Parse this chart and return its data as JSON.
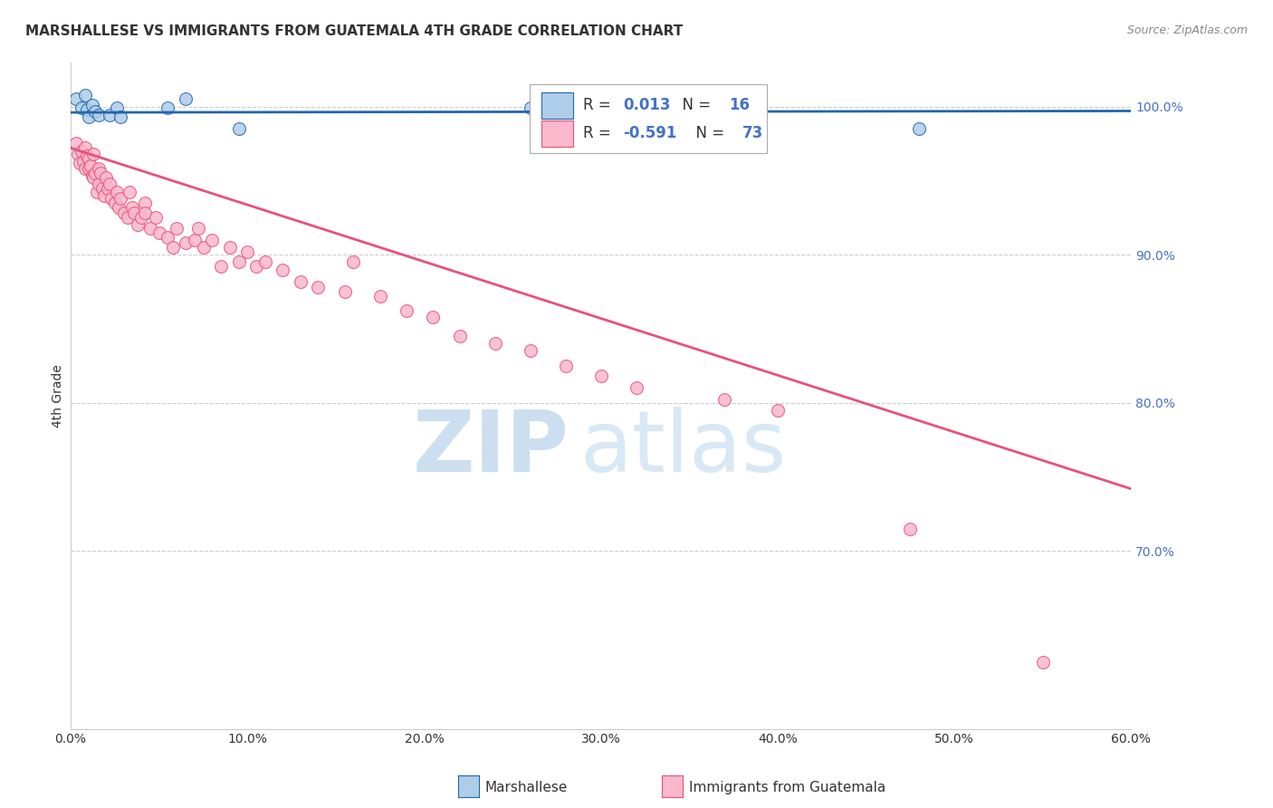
{
  "title": "MARSHALLESE VS IMMIGRANTS FROM GUATEMALA 4TH GRADE CORRELATION CHART",
  "source": "Source: ZipAtlas.com",
  "xlabel_marshallese": "Marshallese",
  "xlabel_guatemala": "Immigrants from Guatemala",
  "ylabel": "4th Grade",
  "xlim": [
    0.0,
    0.6
  ],
  "ylim": [
    0.58,
    1.03
  ],
  "xticks": [
    0.0,
    0.1,
    0.2,
    0.3,
    0.4,
    0.5,
    0.6
  ],
  "xtick_labels": [
    "0.0%",
    "10.0%",
    "20.0%",
    "30.0%",
    "40.0%",
    "50.0%",
    "60.0%"
  ],
  "yticks_right": [
    0.7,
    0.8,
    0.9,
    1.0
  ],
  "ytick_labels_right": [
    "70.0%",
    "80.0%",
    "90.0%",
    "100.0%"
  ],
  "grid_color": "#cccccc",
  "background_color": "#ffffff",
  "blue_color": "#aecde8",
  "pink_color": "#f9b8cb",
  "blue_line_color": "#2166ac",
  "pink_line_color": "#e8517a",
  "R_blue": 0.013,
  "N_blue": 16,
  "R_pink": -0.591,
  "N_pink": 73,
  "blue_scatter_x": [
    0.003,
    0.006,
    0.008,
    0.009,
    0.01,
    0.012,
    0.014,
    0.016,
    0.022,
    0.026,
    0.028,
    0.055,
    0.065,
    0.095,
    0.26,
    0.48
  ],
  "blue_scatter_y": [
    1.005,
    0.999,
    1.008,
    0.998,
    0.993,
    1.001,
    0.997,
    0.994,
    0.994,
    0.999,
    0.993,
    0.999,
    1.005,
    0.985,
    0.999,
    0.985
  ],
  "pink_scatter_x": [
    0.003,
    0.004,
    0.005,
    0.006,
    0.007,
    0.008,
    0.008,
    0.009,
    0.01,
    0.01,
    0.011,
    0.012,
    0.013,
    0.013,
    0.014,
    0.015,
    0.016,
    0.016,
    0.017,
    0.018,
    0.019,
    0.02,
    0.021,
    0.022,
    0.023,
    0.025,
    0.026,
    0.027,
    0.028,
    0.03,
    0.032,
    0.033,
    0.035,
    0.036,
    0.038,
    0.04,
    0.042,
    0.042,
    0.045,
    0.048,
    0.05,
    0.055,
    0.058,
    0.06,
    0.065,
    0.07,
    0.072,
    0.075,
    0.08,
    0.085,
    0.09,
    0.095,
    0.1,
    0.105,
    0.11,
    0.12,
    0.13,
    0.14,
    0.155,
    0.16,
    0.175,
    0.19,
    0.205,
    0.22,
    0.24,
    0.26,
    0.28,
    0.3,
    0.32,
    0.37,
    0.4,
    0.475,
    0.55
  ],
  "pink_scatter_y": [
    0.975,
    0.968,
    0.962,
    0.97,
    0.963,
    0.958,
    0.972,
    0.967,
    0.958,
    0.965,
    0.96,
    0.953,
    0.968,
    0.952,
    0.955,
    0.942,
    0.948,
    0.958,
    0.955,
    0.945,
    0.94,
    0.952,
    0.945,
    0.948,
    0.938,
    0.935,
    0.942,
    0.932,
    0.938,
    0.928,
    0.925,
    0.942,
    0.932,
    0.928,
    0.92,
    0.925,
    0.935,
    0.928,
    0.918,
    0.925,
    0.915,
    0.912,
    0.905,
    0.918,
    0.908,
    0.91,
    0.918,
    0.905,
    0.91,
    0.892,
    0.905,
    0.895,
    0.902,
    0.892,
    0.895,
    0.89,
    0.882,
    0.878,
    0.875,
    0.895,
    0.872,
    0.862,
    0.858,
    0.845,
    0.84,
    0.835,
    0.825,
    0.818,
    0.81,
    0.802,
    0.795,
    0.715,
    0.625
  ],
  "pink_line_x0": 0.0,
  "pink_line_x1": 0.6,
  "pink_line_y0": 0.972,
  "pink_line_y1": 0.742,
  "blue_line_x0": 0.0,
  "blue_line_x1": 0.6,
  "blue_line_y0": 0.996,
  "blue_line_y1": 0.997,
  "watermark_zip": "ZIP",
  "watermark_atlas": "atlas",
  "watermark_color_zip": "#c5d8ed",
  "watermark_color_atlas": "#c5d8ed"
}
